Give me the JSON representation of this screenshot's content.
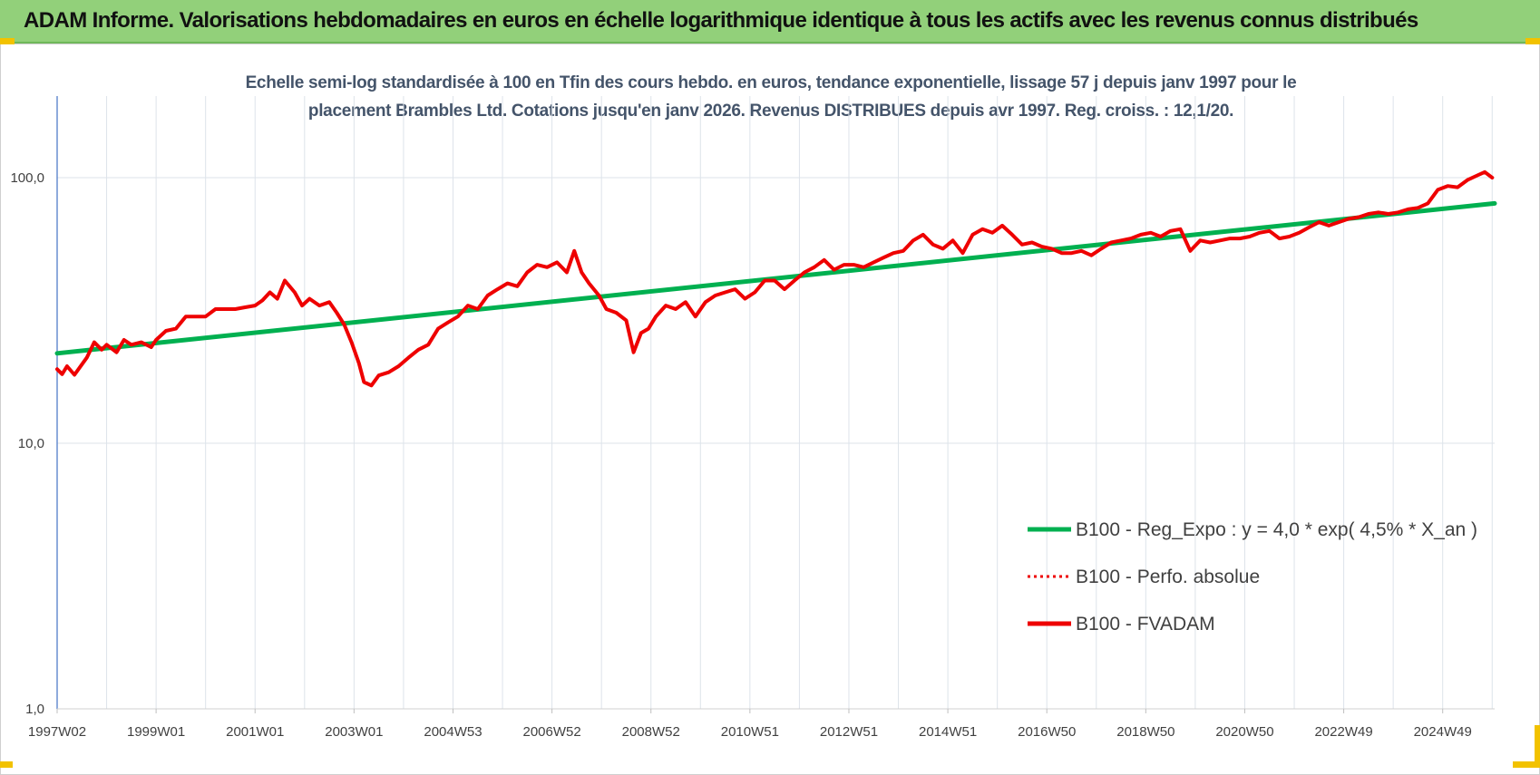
{
  "header": {
    "title": "ADAM Informe. Valorisations hebdomadaires en euros en échelle logarithmique identique à tous les actifs avec les revenus connus distribués"
  },
  "colors": {
    "banner": "#92d07a",
    "regression": "#00b050",
    "fvadam": "#ee0000",
    "perfo": "#ee0000",
    "grid": "#dde3ea",
    "axis": "#4472c4",
    "corner": "#f2c200"
  },
  "chart_data": {
    "type": "line",
    "title_line1": "Echelle semi-log standardisée à 100 en Tfin des cours hebdo. en euros, tendance exponentielle, lissage 57 j depuis janv 1997 pour le",
    "title_line2": "placement Brambles Ltd. Cotations jusqu'en janv 2026. Revenus DISTRIBUES depuis avr 1997. Reg. croiss. : 12,1/20.",
    "y_scale": "log",
    "ylim": [
      1,
      200
    ],
    "xlim": [
      1997.0,
      2026.05
    ],
    "grid": true,
    "legend_position": "right",
    "y_ticks": [
      {
        "value": 1,
        "label": "1,0"
      },
      {
        "value": 10,
        "label": "10,0"
      },
      {
        "value": 100,
        "label": "100,0"
      }
    ],
    "x_ticks": [
      {
        "value": 1997.0,
        "label": "1997W02"
      },
      {
        "value": 1999.0,
        "label": "1999W01"
      },
      {
        "value": 2001.0,
        "label": "2001W01"
      },
      {
        "value": 2003.0,
        "label": "2003W01"
      },
      {
        "value": 2005.0,
        "label": "2004W53"
      },
      {
        "value": 2007.0,
        "label": "2006W52"
      },
      {
        "value": 2009.0,
        "label": "2008W52"
      },
      {
        "value": 2011.0,
        "label": "2010W51"
      },
      {
        "value": 2013.0,
        "label": "2012W51"
      },
      {
        "value": 2015.0,
        "label": "2014W51"
      },
      {
        "value": 2017.0,
        "label": "2016W50"
      },
      {
        "value": 2019.0,
        "label": "2018W50"
      },
      {
        "value": 2021.0,
        "label": "2020W50"
      },
      {
        "value": 2023.0,
        "label": "2022W49"
      },
      {
        "value": 2025.0,
        "label": "2024W49"
      }
    ],
    "series": [
      {
        "name": "B100 - Reg_Expo : y = 4,0 * exp( 4,5% *  X_an )",
        "style": "solid",
        "x": [
          1997.0,
          2026.05
        ],
        "y": [
          21.8,
          80.0
        ]
      },
      {
        "name": "B100 - Perfo. absolue",
        "style": "dotted",
        "x": [],
        "y": []
      },
      {
        "name": "B100 - FVADAM",
        "style": "solid",
        "x": [
          1997.0,
          1997.1,
          1997.2,
          1997.35,
          1997.5,
          1997.6,
          1997.75,
          1997.9,
          1998.0,
          1998.2,
          1998.35,
          1998.5,
          1998.7,
          1998.9,
          1999.0,
          1999.2,
          1999.4,
          1999.6,
          1999.8,
          2000.0,
          2000.2,
          2000.4,
          2000.6,
          2000.8,
          2001.0,
          2001.15,
          2001.3,
          2001.45,
          2001.6,
          2001.8,
          2001.95,
          2002.1,
          2002.3,
          2002.5,
          2002.65,
          2002.8,
          2002.95,
          2003.1,
          2003.2,
          2003.35,
          2003.5,
          2003.7,
          2003.9,
          2004.1,
          2004.3,
          2004.5,
          2004.7,
          2004.9,
          2005.1,
          2005.3,
          2005.5,
          2005.7,
          2005.9,
          2006.1,
          2006.3,
          2006.5,
          2006.7,
          2006.9,
          2007.1,
          2007.3,
          2007.45,
          2007.6,
          2007.75,
          2007.95,
          2008.1,
          2008.3,
          2008.5,
          2008.65,
          2008.8,
          2008.95,
          2009.1,
          2009.3,
          2009.5,
          2009.7,
          2009.9,
          2010.1,
          2010.3,
          2010.5,
          2010.7,
          2010.9,
          2011.1,
          2011.3,
          2011.5,
          2011.7,
          2011.9,
          2012.1,
          2012.3,
          2012.5,
          2012.7,
          2012.9,
          2013.1,
          2013.3,
          2013.5,
          2013.7,
          2013.9,
          2014.1,
          2014.3,
          2014.5,
          2014.7,
          2014.9,
          2015.1,
          2015.3,
          2015.5,
          2015.7,
          2015.9,
          2016.1,
          2016.3,
          2016.5,
          2016.7,
          2016.9,
          2017.1,
          2017.3,
          2017.5,
          2017.7,
          2017.9,
          2018.1,
          2018.3,
          2018.5,
          2018.7,
          2018.9,
          2019.1,
          2019.3,
          2019.5,
          2019.7,
          2019.9,
          2020.1,
          2020.3,
          2020.5,
          2020.7,
          2020.9,
          2021.1,
          2021.3,
          2021.5,
          2021.7,
          2021.9,
          2022.1,
          2022.3,
          2022.5,
          2022.7,
          2022.9,
          2023.1,
          2023.3,
          2023.5,
          2023.7,
          2023.9,
          2024.1,
          2024.3,
          2024.5,
          2024.7,
          2024.9,
          2025.1,
          2025.3,
          2025.5,
          2025.7,
          2025.85,
          2026.0
        ],
        "y": [
          19.0,
          18.2,
          19.5,
          18.1,
          19.8,
          21.0,
          24.0,
          22.5,
          23.5,
          22.0,
          24.5,
          23.5,
          24.0,
          23.0,
          24.5,
          26.5,
          27.0,
          30.0,
          30.0,
          30.0,
          32.0,
          32.0,
          32.0,
          32.5,
          33.0,
          34.5,
          37.0,
          35.0,
          41.0,
          37.0,
          33.0,
          35.0,
          33.0,
          34.0,
          31.0,
          28.0,
          24.0,
          20.0,
          17.0,
          16.5,
          18.0,
          18.5,
          19.5,
          21.0,
          22.5,
          23.5,
          27.0,
          28.5,
          30.0,
          33.0,
          32.0,
          36.0,
          38.0,
          40.0,
          39.0,
          44.0,
          47.0,
          46.0,
          48.0,
          44.0,
          53.0,
          44.0,
          40.0,
          36.0,
          32.0,
          31.0,
          29.0,
          22.0,
          26.0,
          27.0,
          30.0,
          33.0,
          32.0,
          34.0,
          30.0,
          34.0,
          36.0,
          37.0,
          38.0,
          35.0,
          37.0,
          41.0,
          41.0,
          38.0,
          41.0,
          44.0,
          46.0,
          49.0,
          45.0,
          47.0,
          47.0,
          46.0,
          48.0,
          50.0,
          52.0,
          53.0,
          58.0,
          61.0,
          56.0,
          54.0,
          58.0,
          52.0,
          61.0,
          64.0,
          62.0,
          66.0,
          61.0,
          56.0,
          57.0,
          55.0,
          54.0,
          52.0,
          52.0,
          53.0,
          51.0,
          54.0,
          57.0,
          58.0,
          59.0,
          61.0,
          62.0,
          60.0,
          63.0,
          64.0,
          53.0,
          58.0,
          57.0,
          58.0,
          59.0,
          59.0,
          60.0,
          62.0,
          63.0,
          59.0,
          60.0,
          62.0,
          65.0,
          68.0,
          66.0,
          68.0,
          70.0,
          71.0,
          73.0,
          74.0,
          73.0,
          74.0,
          76.0,
          77.0,
          80.0,
          90.0,
          93.0,
          92.0,
          98.0,
          102.0,
          105.0,
          100.0
        ]
      }
    ]
  },
  "legend": {
    "items": [
      {
        "label": "B100 - Reg_Expo : y = 4,0 * exp( 4,5% *  X_an )"
      },
      {
        "label": "B100 - Perfo. absolue"
      },
      {
        "label": "B100 - FVADAM"
      }
    ]
  }
}
